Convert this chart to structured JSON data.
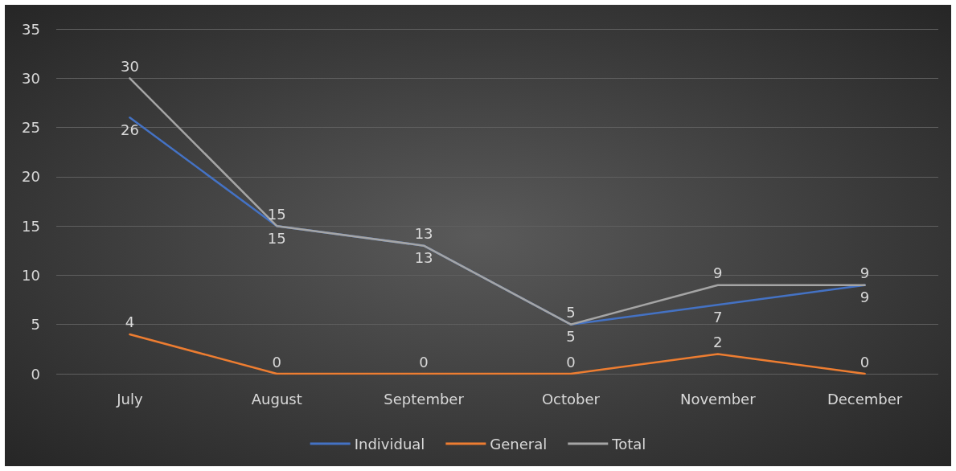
{
  "chart_data": {
    "type": "line",
    "categories": [
      "July",
      "August",
      "September",
      "October",
      "November",
      "December"
    ],
    "series": [
      {
        "name": "Individual",
        "color": "#4472c4",
        "values": [
          26,
          15,
          13,
          5,
          7,
          9
        ]
      },
      {
        "name": "General",
        "color": "#ed7d31",
        "values": [
          4,
          0,
          0,
          0,
          2,
          0
        ]
      },
      {
        "name": "Total",
        "color": "#a5a5a5",
        "values": [
          30,
          15,
          13,
          5,
          9,
          9
        ]
      }
    ],
    "ylim": [
      0,
      35
    ],
    "yticks": [
      0,
      5,
      10,
      15,
      20,
      25,
      30,
      35
    ],
    "grid": "y",
    "legend": "bottom",
    "data_labels": true,
    "marker": "none",
    "line_style": "solid"
  }
}
